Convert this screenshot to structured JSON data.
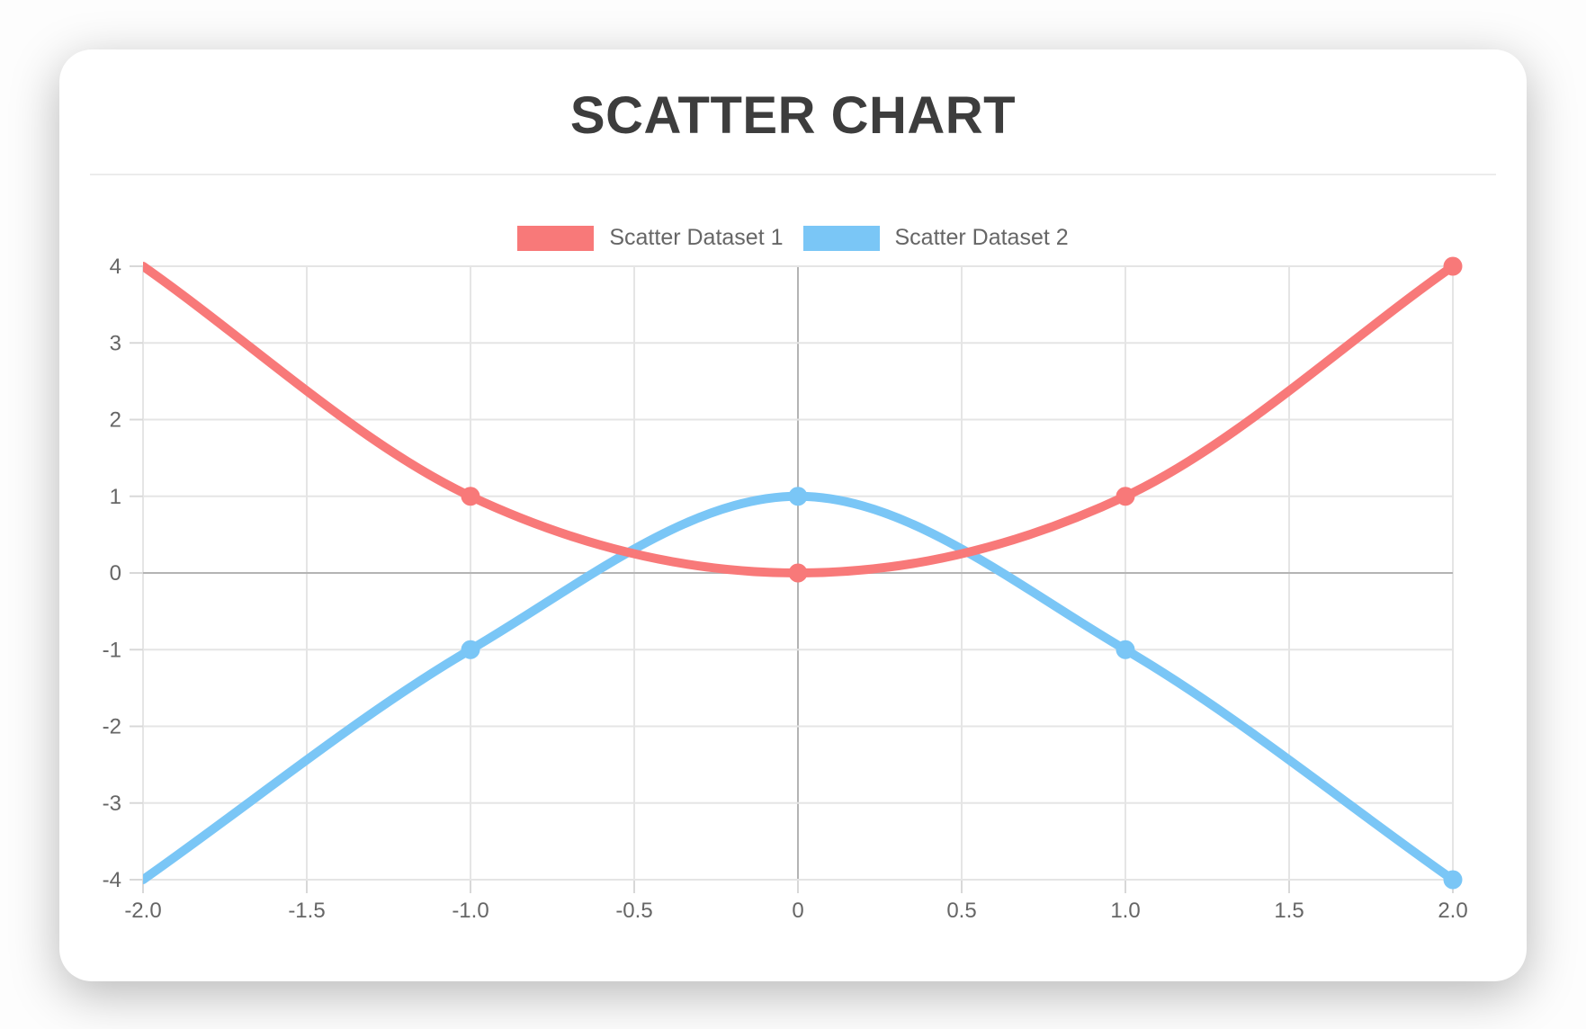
{
  "chart_data": {
    "type": "scatter",
    "title": "SCATTER CHART",
    "legend_position": "top",
    "grid": true,
    "interpolation": "monotone",
    "xlim": [
      -2,
      2
    ],
    "ylim": [
      -4,
      4
    ],
    "x_ticks": [
      {
        "value": -2.0,
        "label": "-2.0"
      },
      {
        "value": -1.5,
        "label": "-1.5"
      },
      {
        "value": -1.0,
        "label": "-1.0"
      },
      {
        "value": -0.5,
        "label": "-0.5"
      },
      {
        "value": 0,
        "label": "0"
      },
      {
        "value": 0.5,
        "label": "0.5"
      },
      {
        "value": 1.0,
        "label": "1.0"
      },
      {
        "value": 1.5,
        "label": "1.5"
      },
      {
        "value": 2.0,
        "label": "2.0"
      }
    ],
    "y_ticks": [
      {
        "value": 4,
        "label": "4"
      },
      {
        "value": 3,
        "label": "3"
      },
      {
        "value": 2,
        "label": "2"
      },
      {
        "value": 1,
        "label": "1"
      },
      {
        "value": 0,
        "label": "0"
      },
      {
        "value": -1,
        "label": "-1"
      },
      {
        "value": -2,
        "label": "-2"
      },
      {
        "value": -3,
        "label": "-3"
      },
      {
        "value": -4,
        "label": "-4"
      }
    ],
    "series": [
      {
        "name": "Scatter Dataset 1",
        "color": "#f87979",
        "points": [
          [
            -2,
            4
          ],
          [
            -1,
            1
          ],
          [
            0,
            0
          ],
          [
            1,
            1
          ],
          [
            2,
            4
          ]
        ]
      },
      {
        "name": "Scatter Dataset 2",
        "color": "#7ac6f6",
        "points": [
          [
            -2,
            -4
          ],
          [
            -1,
            -1
          ],
          [
            0,
            1
          ],
          [
            1,
            -1
          ],
          [
            2,
            -4
          ]
        ]
      }
    ],
    "colors": {
      "title": "#3d3d3d",
      "tick_text": "#666666",
      "grid_line": "#e5e5e5",
      "zero_line": "#b4b4b4",
      "tick_mark": "#d8d8d8",
      "card_background": "#ffffff"
    }
  }
}
